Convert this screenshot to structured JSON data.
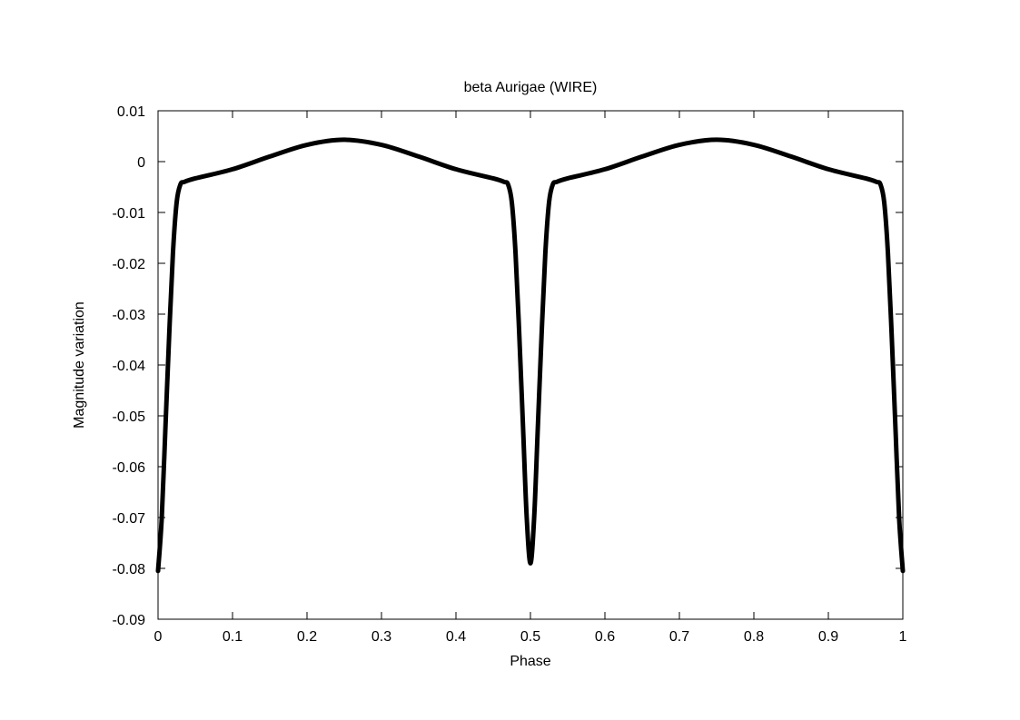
{
  "chart_data": {
    "type": "line",
    "title": "beta Aurigae (WIRE)",
    "xlabel": "Phase",
    "ylabel": "Magnitude variation",
    "xlim": [
      0,
      1
    ],
    "ylim": [
      -0.09,
      0.01
    ],
    "grid": false,
    "legend": "none",
    "x_ticks": [
      0,
      0.1,
      0.2,
      0.3,
      0.4,
      0.5,
      0.6,
      0.7,
      0.8,
      0.9,
      1
    ],
    "x_tick_labels": [
      "0",
      "0.1",
      "0.2",
      "0.3",
      "0.4",
      "0.5",
      "0.6",
      "0.7",
      "0.8",
      "0.9",
      "1"
    ],
    "y_ticks": [
      0.01,
      0,
      -0.01,
      -0.02,
      -0.03,
      -0.04,
      -0.05,
      -0.06,
      -0.07,
      -0.08,
      -0.09
    ],
    "y_tick_labels": [
      "0.01",
      "0",
      "-0.01",
      "-0.02",
      "-0.03",
      "-0.04",
      "-0.05",
      "-0.06",
      "-0.07",
      "-0.08",
      "-0.09"
    ],
    "series": [
      {
        "color": "#000000",
        "x": [
          0.0,
          0.005,
          0.01,
          0.015,
          0.02,
          0.025,
          0.03,
          0.035,
          0.05,
          0.1,
          0.15,
          0.2,
          0.25,
          0.3,
          0.35,
          0.4,
          0.45,
          0.465,
          0.47,
          0.475,
          0.48,
          0.485,
          0.49,
          0.495,
          0.5,
          0.505,
          0.51,
          0.515,
          0.52,
          0.525,
          0.53,
          0.535,
          0.55,
          0.6,
          0.65,
          0.7,
          0.75,
          0.8,
          0.85,
          0.9,
          0.95,
          0.965,
          0.97,
          0.975,
          0.98,
          0.985,
          0.99,
          0.995,
          1.0
        ],
        "y": [
          -0.0805,
          -0.07,
          -0.052,
          -0.034,
          -0.018,
          -0.008,
          -0.0045,
          -0.004,
          -0.0033,
          -0.0015,
          0.001,
          0.0033,
          0.0043,
          0.0033,
          0.001,
          -0.0015,
          -0.0033,
          -0.004,
          -0.0045,
          -0.008,
          -0.018,
          -0.034,
          -0.052,
          -0.07,
          -0.079,
          -0.07,
          -0.052,
          -0.034,
          -0.018,
          -0.008,
          -0.0045,
          -0.004,
          -0.0033,
          -0.0015,
          0.001,
          0.0033,
          0.0043,
          0.0033,
          0.001,
          -0.0015,
          -0.0033,
          -0.004,
          -0.0045,
          -0.008,
          -0.018,
          -0.034,
          -0.052,
          -0.07,
          -0.0805
        ]
      }
    ]
  }
}
